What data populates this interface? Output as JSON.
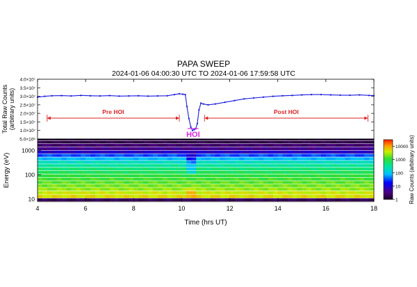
{
  "figure": {
    "title": "PAPA SWEEP",
    "subtitle": "2024-01-06 04:00:30 UTC TO 2024-01-06 17:59:58 UTC"
  },
  "chart_data": [
    {
      "type": "line",
      "panel": "total-counts",
      "ylabel_line1": "Total Raw Counts",
      "ylabel_line2": "(arbitrary units)",
      "xlim": [
        4,
        18
      ],
      "ylim": [
        0.5,
        4.0
      ],
      "y_tick_values": [
        0.5,
        1.0,
        1.5,
        2.0,
        2.5,
        3.0,
        3.5,
        4.0
      ],
      "y_tick_labels": [
        "5.0×10⁶",
        "1.0×10⁷",
        "1.5×10⁷",
        "2.0×10⁷",
        "2.5×10⁷",
        "3.0×10⁷",
        "3.5×10⁷",
        "4.0×10⁷"
      ],
      "series": [
        {
          "color": "#1a1adc",
          "x": [
            4.0,
            4.3,
            4.6,
            5.0,
            5.4,
            5.8,
            6.2,
            6.6,
            7.0,
            7.4,
            7.8,
            8.2,
            8.6,
            9.0,
            9.4,
            9.7,
            9.9,
            10.05,
            10.15,
            10.22,
            10.3,
            10.38,
            10.45,
            10.52,
            10.58,
            10.65,
            10.72,
            10.8,
            10.9,
            11.1,
            11.4,
            11.8,
            12.2,
            12.6,
            13.0,
            13.4,
            13.8,
            14.2,
            14.6,
            15.0,
            15.4,
            15.8,
            16.2,
            16.6,
            17.0,
            17.4,
            17.8,
            18.0
          ],
          "y": [
            2.95,
            3.0,
            3.03,
            3.04,
            3.02,
            3.05,
            3.03,
            3.02,
            3.04,
            3.01,
            3.02,
            3.03,
            3.01,
            3.02,
            3.03,
            3.1,
            3.15,
            3.12,
            3.1,
            2.4,
            1.7,
            1.2,
            1.0,
            1.05,
            1.1,
            1.4,
            2.2,
            2.6,
            2.55,
            2.5,
            2.55,
            2.65,
            2.75,
            2.85,
            2.9,
            2.95,
            3.0,
            3.03,
            3.05,
            3.08,
            3.1,
            3.1,
            3.08,
            3.07,
            3.06,
            3.08,
            3.05,
            3.04
          ]
        }
      ],
      "annotations": {
        "pre_label": "Pre HOI",
        "pre_range": [
          4.4,
          9.9
        ],
        "post_label": "Post HOI",
        "post_range": [
          10.95,
          17.75
        ],
        "hoi_label": "HOI",
        "hoi_range": [
          10.25,
          10.7
        ],
        "arrow_color": "#dd2222",
        "hoi_color": "#dd22dd"
      }
    },
    {
      "type": "heatmap",
      "panel": "energy-spectrogram",
      "ylabel": "Energy (eV)",
      "xlabel": "Time (hrs UT)",
      "xlim": [
        4,
        18
      ],
      "x_ticks": [
        4,
        6,
        8,
        10,
        12,
        14,
        16,
        18
      ],
      "x_tick_labels": [
        "4",
        "6",
        "8",
        "10",
        "12",
        "14",
        "16",
        "18"
      ],
      "y_scale": "log",
      "ylim": [
        8,
        3000
      ],
      "y_ticks": [
        10,
        100,
        1000
      ],
      "y_tick_labels": [
        "10",
        "100",
        "1000"
      ],
      "energy_levels": [
        9,
        13,
        18,
        25,
        35,
        48,
        66,
        90,
        125,
        170,
        235,
        325,
        450,
        620,
        850,
        1170,
        1600,
        2200,
        2800
      ],
      "base_log_counts": [
        0.3,
        3.7,
        3.6,
        3.4,
        3.3,
        3.2,
        3.1,
        3.0,
        2.85,
        2.7,
        2.5,
        2.3,
        1.9,
        1.5,
        0.9,
        0.6,
        0.4,
        0.2,
        0.1
      ],
      "hoi_window": [
        10.25,
        10.7
      ],
      "colorbar": {
        "label": "Raw Counts (arbitrary units)",
        "log_range": [
          0,
          4.5
        ],
        "tick_values": [
          0,
          1,
          2,
          3,
          4
        ],
        "tick_labels": [
          "1",
          "10",
          "100",
          "1000",
          "10000"
        ]
      }
    }
  ]
}
